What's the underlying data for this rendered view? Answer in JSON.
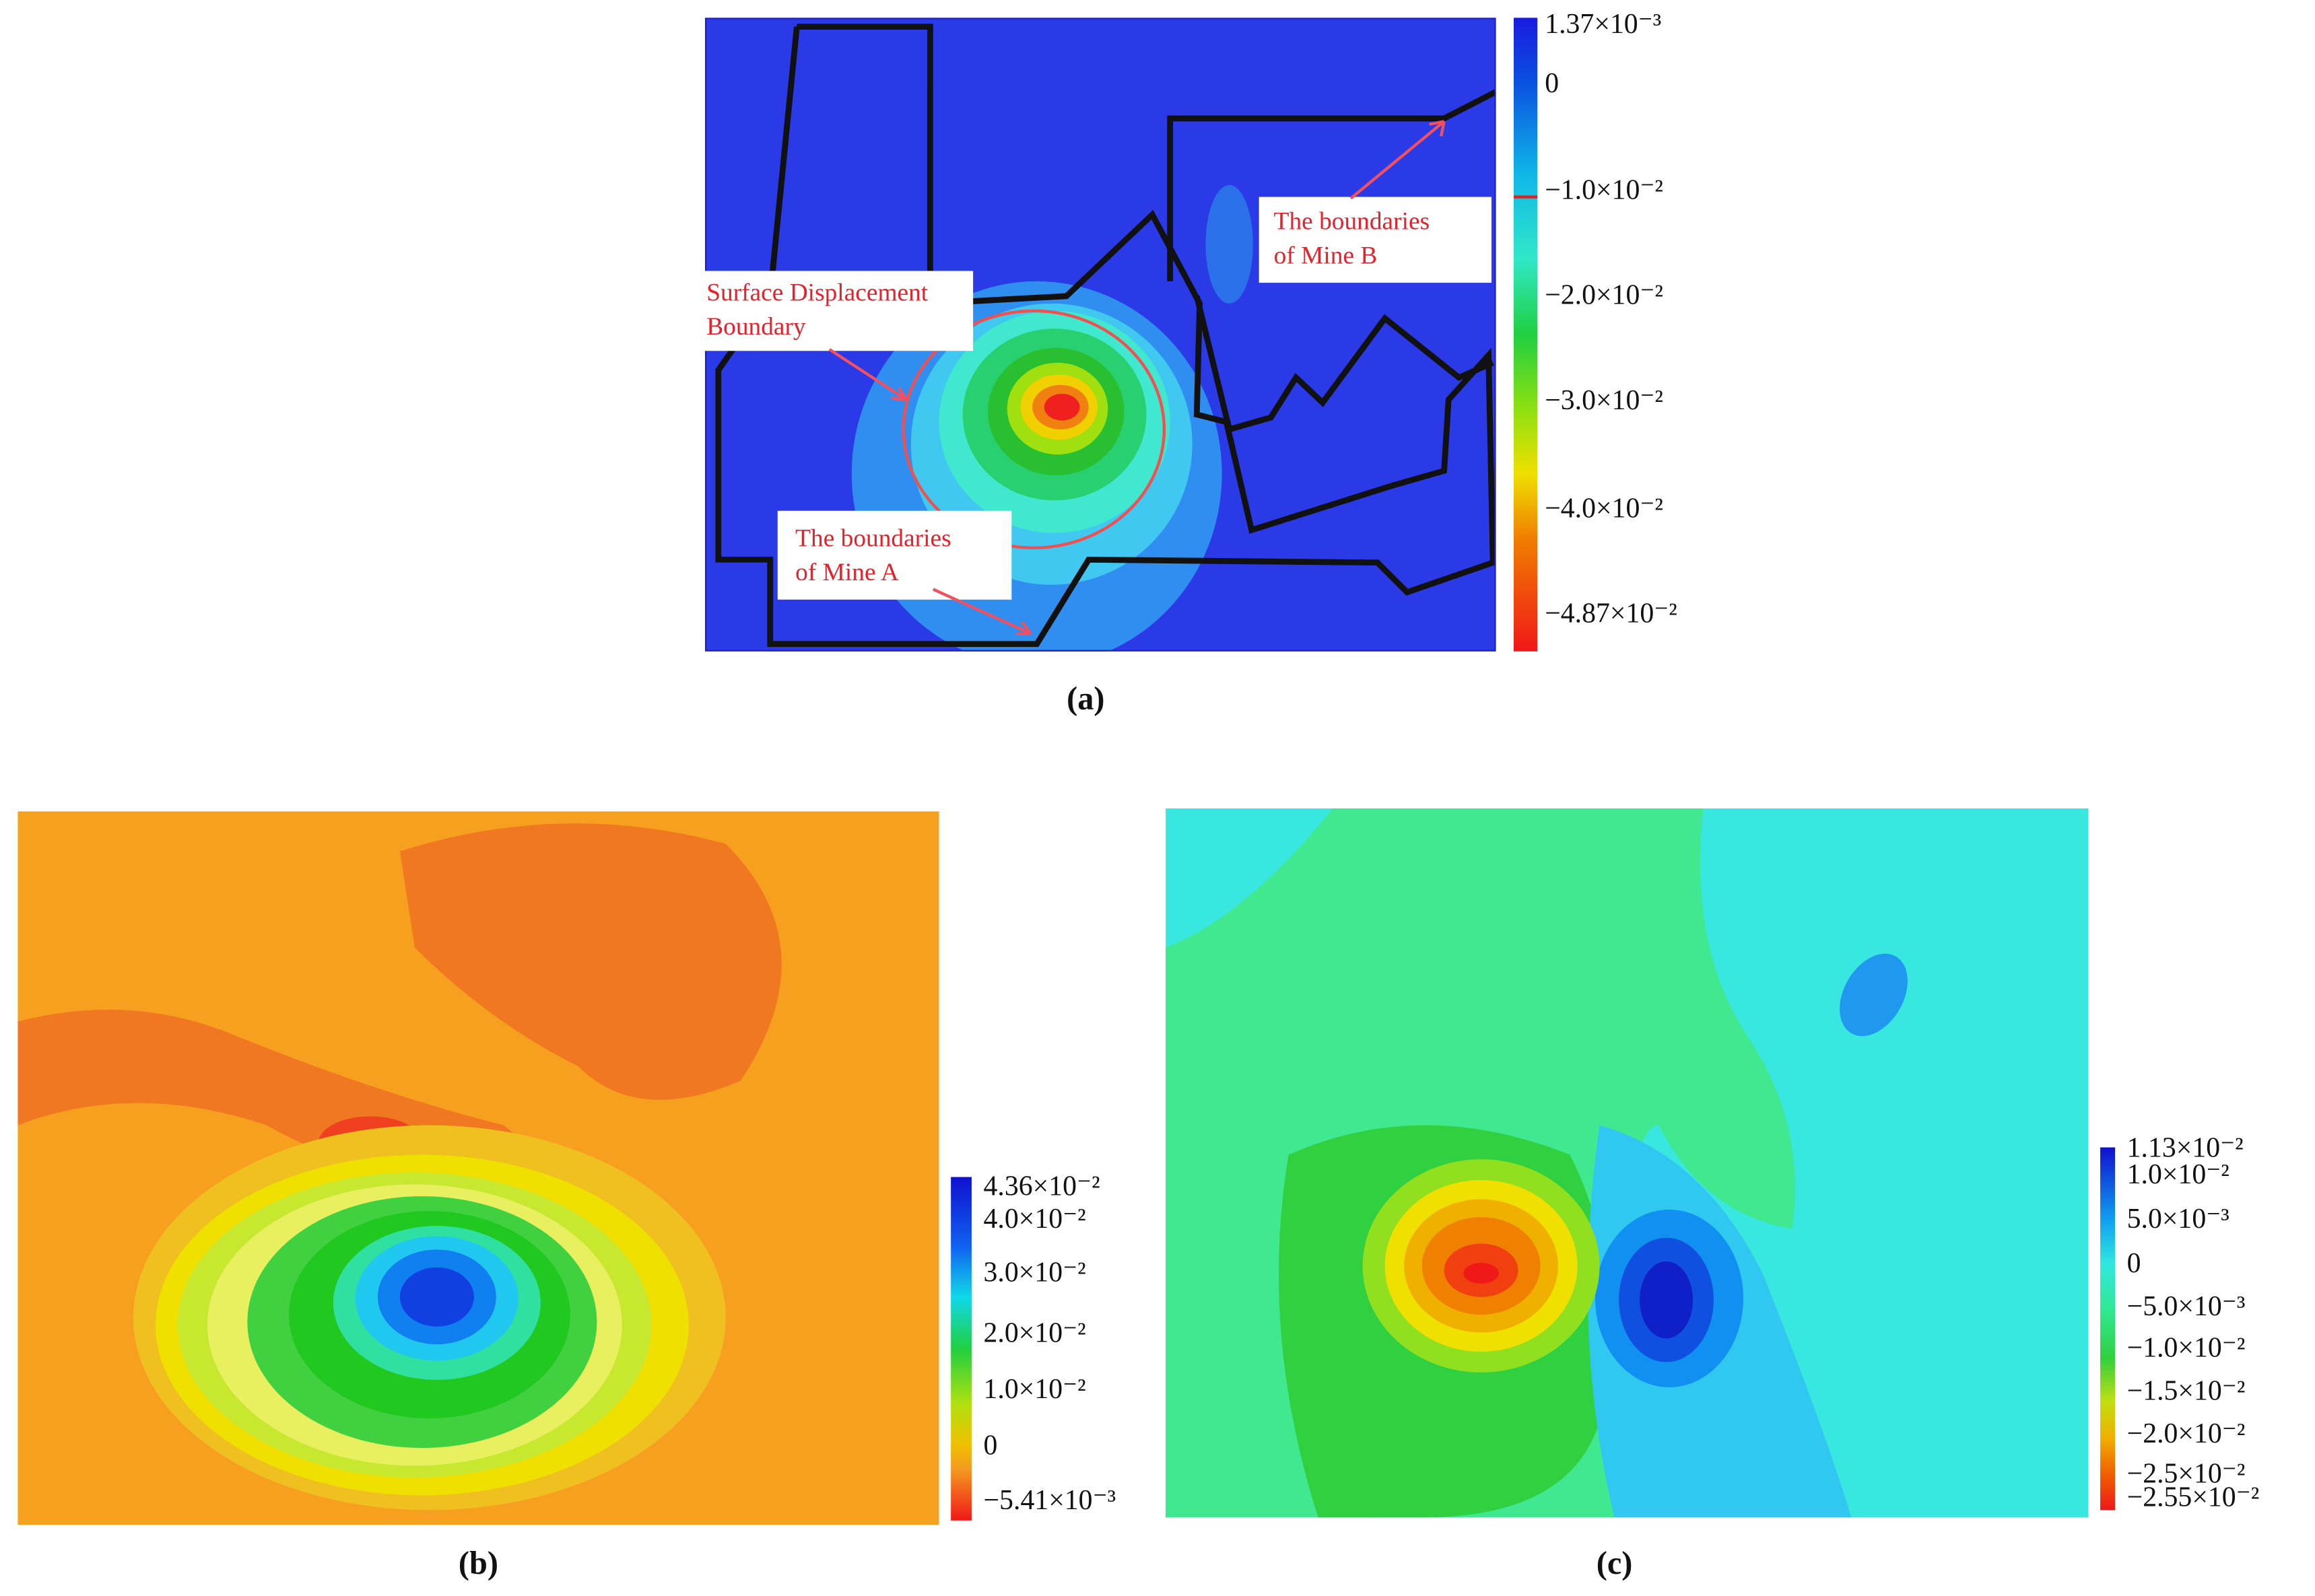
{
  "panels": [
    {
      "caption": "(a)",
      "colorbar": [
        "1.37×10⁻³",
        "0",
        "−1.0×10⁻²",
        "−2.0×10⁻²",
        "−3.0×10⁻²",
        "−4.0×10⁻²",
        "−4.87×10⁻²"
      ],
      "annotations": [
        {
          "lines": [
            "Surface Displacement",
            "Boundary"
          ]
        },
        {
          "lines": [
            "The boundaries",
            "of Mine A"
          ]
        },
        {
          "lines": [
            "The boundaries",
            "of Mine B"
          ]
        }
      ]
    },
    {
      "caption": "(b)",
      "colorbar": [
        "4.36×10⁻²",
        "4.0×10⁻²",
        "3.0×10⁻²",
        "2.0×10⁻²",
        "1.0×10⁻²",
        "0",
        "−5.41×10⁻³"
      ]
    },
    {
      "caption": "(c)",
      "colorbar": [
        "1.13×10⁻²",
        "1.0×10⁻²",
        "5.0×10⁻³",
        "0",
        "−5.0×10⁻³",
        "−1.0×10⁻²",
        "−1.5×10⁻²",
        "−2.0×10⁻²",
        "−2.5×10⁻²",
        "−2.55×10⁻²"
      ]
    }
  ]
}
